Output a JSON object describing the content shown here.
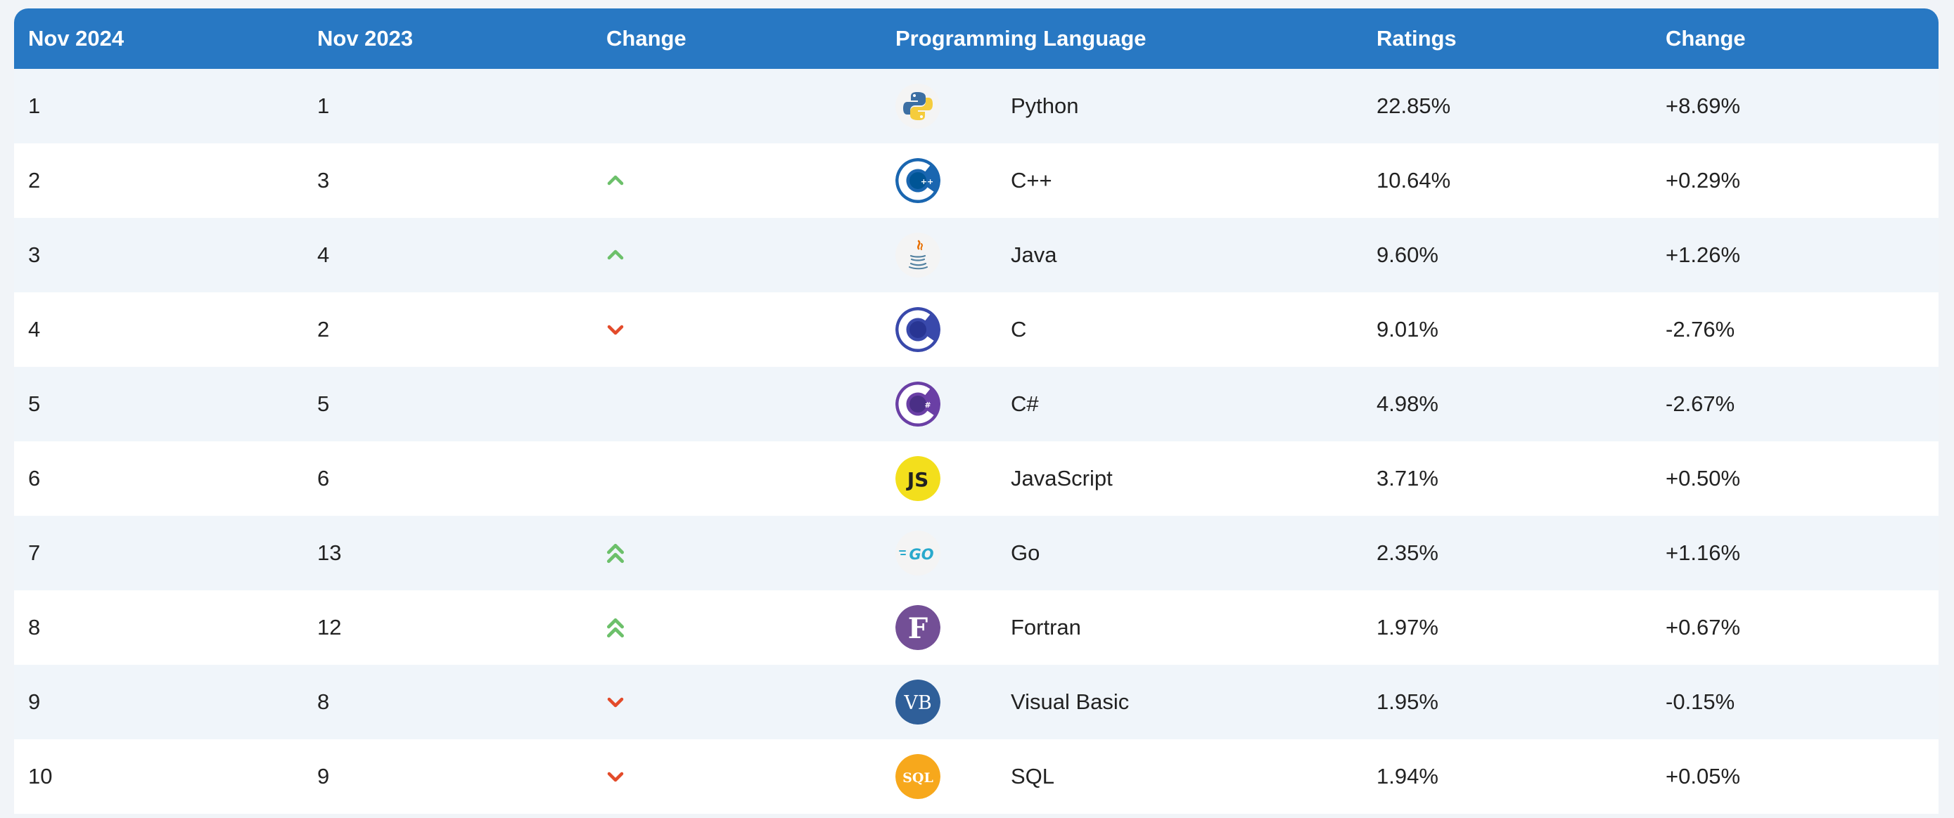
{
  "headers": {
    "nov2024": "Nov 2024",
    "nov2023": "Nov 2023",
    "change": "Change",
    "language": "Programming Language",
    "ratings": "Ratings",
    "change_pct": "Change"
  },
  "colors": {
    "header_bg": "#2878c3",
    "up": "#6cc06a",
    "down": "#e34b2a"
  },
  "rows": [
    {
      "rank_2024": "1",
      "rank_2023": "1",
      "trend": "none",
      "icon": "python-logo-icon",
      "language": "Python",
      "rating": "22.85%",
      "change": "+8.69%"
    },
    {
      "rank_2024": "2",
      "rank_2023": "3",
      "trend": "up",
      "icon": "cpp-logo-icon",
      "language": "C++",
      "rating": "10.64%",
      "change": "+0.29%"
    },
    {
      "rank_2024": "3",
      "rank_2023": "4",
      "trend": "up",
      "icon": "java-logo-icon",
      "language": "Java",
      "rating": "9.60%",
      "change": "+1.26%"
    },
    {
      "rank_2024": "4",
      "rank_2023": "2",
      "trend": "down",
      "icon": "c-logo-icon",
      "language": "C",
      "rating": "9.01%",
      "change": "-2.76%"
    },
    {
      "rank_2024": "5",
      "rank_2023": "5",
      "trend": "none",
      "icon": "csharp-logo-icon",
      "language": "C#",
      "rating": "4.98%",
      "change": "-2.67%"
    },
    {
      "rank_2024": "6",
      "rank_2023": "6",
      "trend": "none",
      "icon": "javascript-logo-icon",
      "language": "JavaScript",
      "rating": "3.71%",
      "change": "+0.50%"
    },
    {
      "rank_2024": "7",
      "rank_2023": "13",
      "trend": "double-up",
      "icon": "go-logo-icon",
      "language": "Go",
      "rating": "2.35%",
      "change": "+1.16%"
    },
    {
      "rank_2024": "8",
      "rank_2023": "12",
      "trend": "double-up",
      "icon": "fortran-logo-icon",
      "language": "Fortran",
      "rating": "1.97%",
      "change": "+0.67%"
    },
    {
      "rank_2024": "9",
      "rank_2023": "8",
      "trend": "down",
      "icon": "visual-basic-logo-icon",
      "language": "Visual Basic",
      "rating": "1.95%",
      "change": "-0.15%"
    },
    {
      "rank_2024": "10",
      "rank_2023": "9",
      "trend": "down",
      "icon": "sql-logo-icon",
      "language": "SQL",
      "rating": "1.94%",
      "change": "+0.05%"
    }
  ],
  "logo_text": {
    "javascript": "JS",
    "go": "GO",
    "fortran": "F",
    "visual_basic": "VB",
    "sql": "SQL"
  }
}
